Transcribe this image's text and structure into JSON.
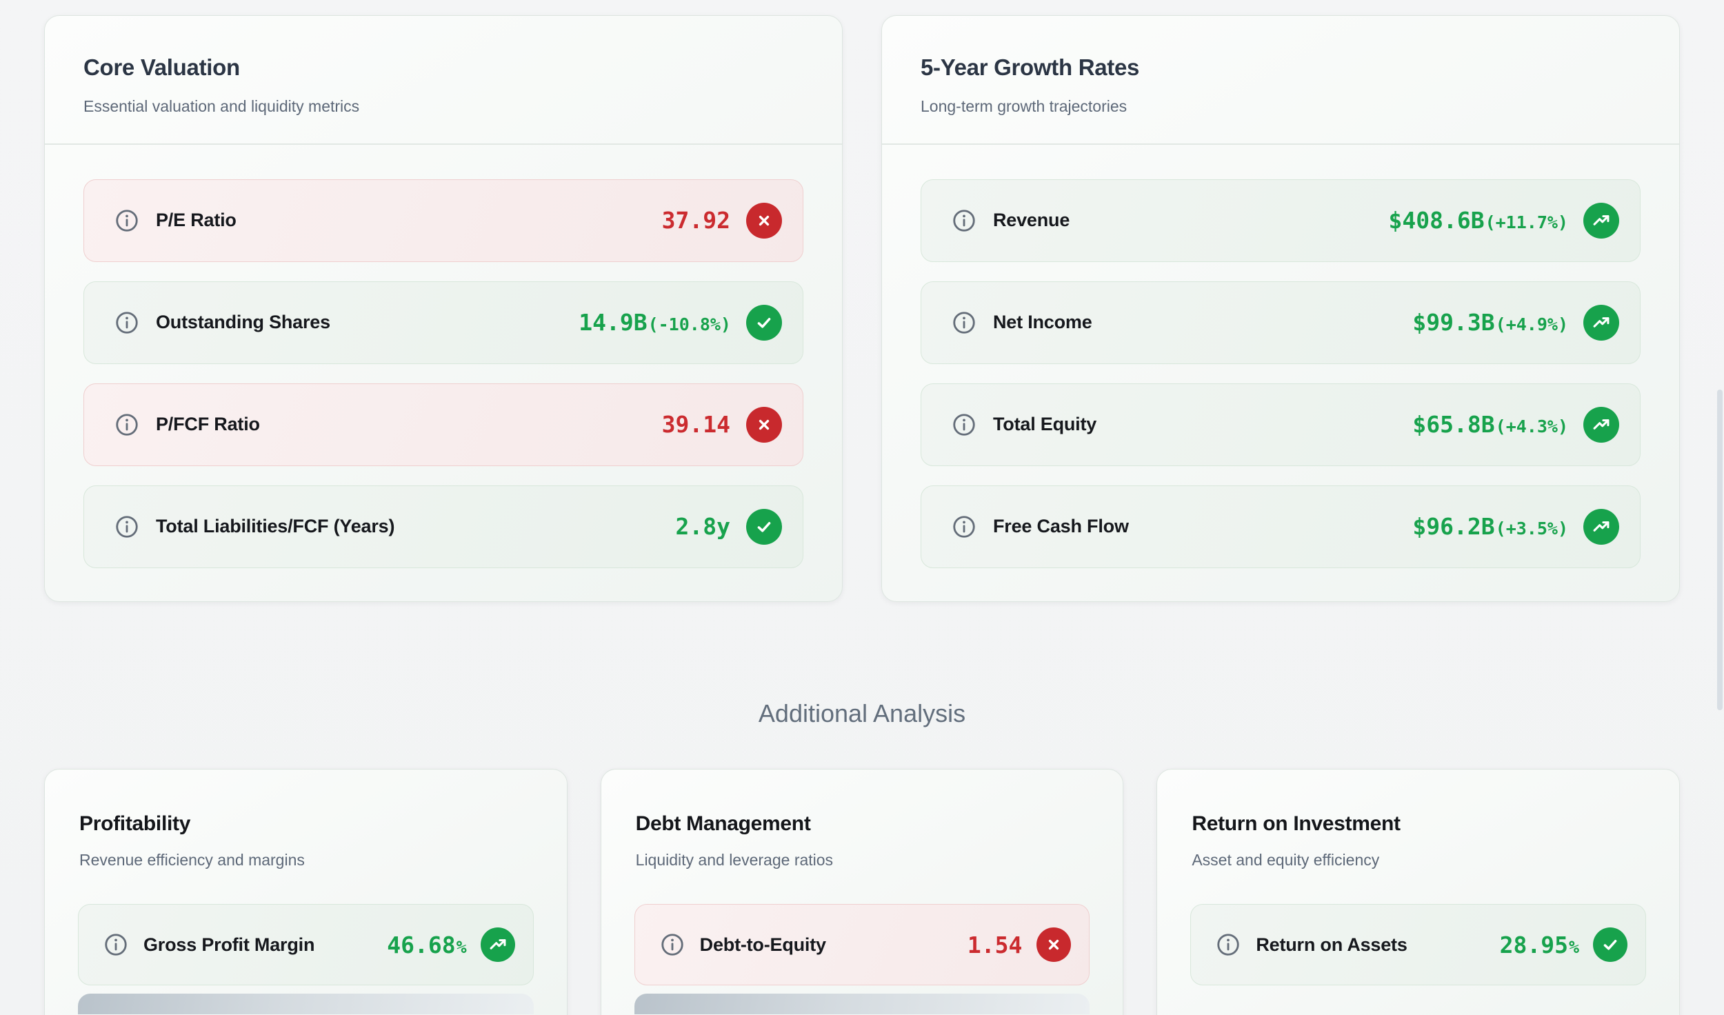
{
  "theme": {
    "positive": "#17a24c",
    "negative": "#c8292d",
    "info_icon": "#646d79"
  },
  "top_cards": [
    {
      "title": "Core Valuation",
      "subtitle": "Essential valuation and liquidity metrics",
      "rows": [
        {
          "label": "P/E Ratio",
          "value_main": "37.92",
          "value_sub": "",
          "status": "bad",
          "badge": "x"
        },
        {
          "label": "Outstanding Shares",
          "value_main": "14.9B",
          "value_sub": "(-10.8%)",
          "status": "good",
          "badge": "check"
        },
        {
          "label": "P/FCF Ratio",
          "value_main": "39.14",
          "value_sub": "",
          "status": "bad",
          "badge": "x"
        },
        {
          "label": "Total Liabilities/FCF (Years)",
          "value_main": "2.8y",
          "value_sub": "",
          "status": "good",
          "badge": "check"
        }
      ]
    },
    {
      "title": "5-Year Growth Rates",
      "subtitle": "Long-term growth trajectories",
      "rows": [
        {
          "label": "Revenue",
          "value_main": "$408.6B",
          "value_sub": "(+11.7%)",
          "status": "good",
          "badge": "trend"
        },
        {
          "label": "Net Income",
          "value_main": "$99.3B",
          "value_sub": "(+4.9%)",
          "status": "good",
          "badge": "trend"
        },
        {
          "label": "Total Equity",
          "value_main": "$65.8B",
          "value_sub": "(+4.3%)",
          "status": "good",
          "badge": "trend"
        },
        {
          "label": "Free Cash Flow",
          "value_main": "$96.2B",
          "value_sub": "(+3.5%)",
          "status": "good",
          "badge": "trend"
        }
      ]
    }
  ],
  "additional": {
    "heading": "Additional Analysis",
    "cards": [
      {
        "title": "Profitability",
        "subtitle": "Revenue efficiency and margins",
        "rows": [
          {
            "label": "Gross Profit Margin",
            "value_main": "46.68",
            "value_sub": "%",
            "status": "good",
            "badge": "trend"
          }
        ]
      },
      {
        "title": "Debt Management",
        "subtitle": "Liquidity and leverage ratios",
        "rows": [
          {
            "label": "Debt-to-Equity",
            "value_main": "1.54",
            "value_sub": "",
            "status": "bad",
            "badge": "x"
          }
        ]
      },
      {
        "title": "Return on Investment",
        "subtitle": "Asset and equity efficiency",
        "rows": [
          {
            "label": "Return on Assets",
            "value_main": "28.95",
            "value_sub": "%",
            "status": "good",
            "badge": "check"
          }
        ]
      }
    ]
  }
}
